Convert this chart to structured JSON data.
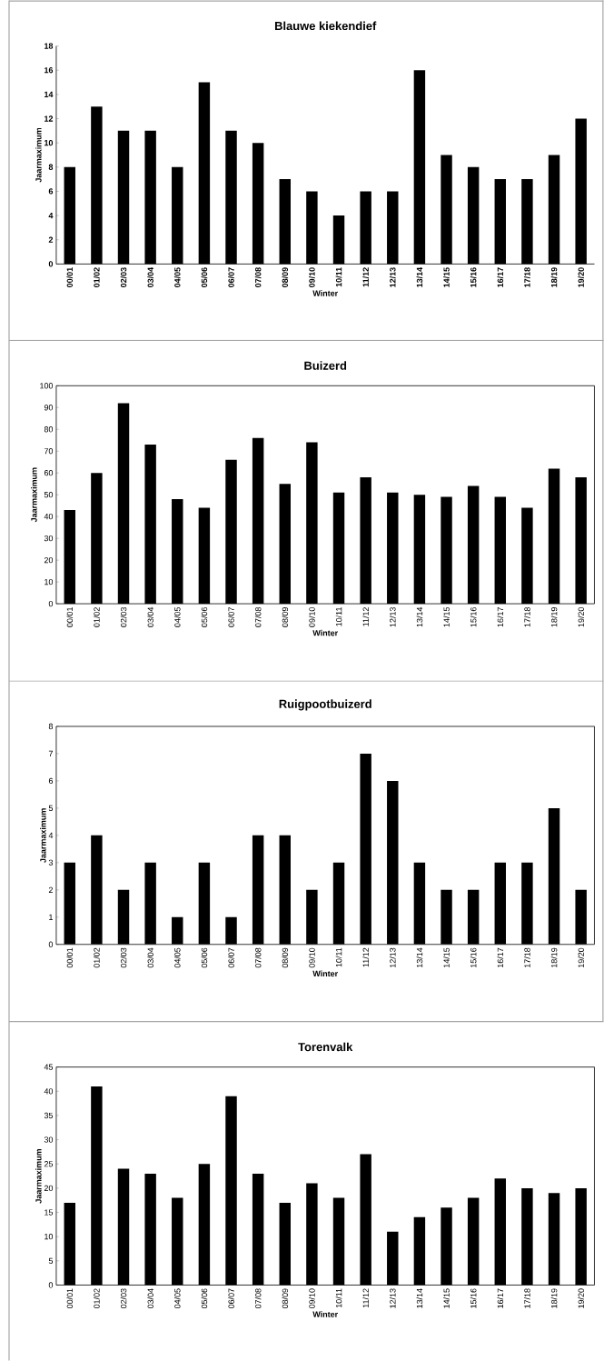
{
  "chart_data": [
    {
      "type": "bar",
      "title": "Blauwe kiekendief",
      "xlabel": "Winter",
      "ylabel": "Jaarmaximum",
      "color": "#000000",
      "categories": [
        "00/01",
        "01/02",
        "02/03",
        "03/04",
        "04/05",
        "05/06",
        "06/07",
        "07/08",
        "08/09",
        "09/10",
        "10/11",
        "11/12",
        "12/13",
        "13/14",
        "14/15",
        "15/16",
        "16/17",
        "17/18",
        "18/19",
        "19/20"
      ],
      "values": [
        8,
        13,
        11,
        11,
        8,
        15,
        11,
        10,
        7,
        6,
        4,
        6,
        6,
        16,
        9,
        8,
        7,
        7,
        9,
        12
      ],
      "ylim": [
        0,
        18
      ],
      "yticks": [
        0,
        2,
        4,
        6,
        8,
        10,
        12,
        14,
        16,
        18
      ]
    },
    {
      "type": "bar",
      "title": "Buizerd",
      "xlabel": "Winter",
      "ylabel": "Jaarmaximum",
      "color": "#000000",
      "categories": [
        "00/01",
        "01/02",
        "02/03",
        "03/04",
        "04/05",
        "05/06",
        "06/07",
        "07/08",
        "08/09",
        "09/10",
        "10/11",
        "11/12",
        "12/13",
        "13/14",
        "14/15",
        "15/16",
        "16/17",
        "17/18",
        "18/19",
        "19/20"
      ],
      "values": [
        43,
        60,
        92,
        73,
        48,
        44,
        66,
        76,
        55,
        74,
        51,
        58,
        51,
        50,
        49,
        54,
        49,
        44,
        62,
        58
      ],
      "ylim": [
        0,
        100
      ],
      "yticks": [
        0,
        10,
        20,
        30,
        40,
        50,
        60,
        70,
        80,
        90,
        100
      ]
    },
    {
      "type": "bar",
      "title": "Ruigpootbuizerd",
      "xlabel": "Winter",
      "ylabel": "Jaarmaximum",
      "color": "#000000",
      "categories": [
        "00/01",
        "01/02",
        "02/03",
        "03/04",
        "04/05",
        "05/06",
        "06/07",
        "07/08",
        "08/09",
        "09/10",
        "10/11",
        "11/12",
        "12/13",
        "13/14",
        "14/15",
        "15/16",
        "16/17",
        "17/18",
        "18/19",
        "19/20"
      ],
      "values": [
        3,
        4,
        2,
        3,
        1,
        3,
        1,
        4,
        4,
        2,
        3,
        7,
        6,
        3,
        2,
        2,
        3,
        3,
        5,
        2
      ],
      "ylim": [
        0,
        8
      ],
      "yticks": [
        0,
        1,
        2,
        3,
        4,
        5,
        6,
        7,
        8
      ]
    },
    {
      "type": "bar",
      "title": "Torenvalk",
      "xlabel": "Winter",
      "ylabel": "Jaarmaximum",
      "color": "#000000",
      "categories": [
        "00/01",
        "01/02",
        "02/03",
        "03/04",
        "04/05",
        "05/06",
        "06/07",
        "07/08",
        "08/09",
        "09/10",
        "10/11",
        "11/12",
        "12/13",
        "13/14",
        "14/15",
        "15/16",
        "16/17",
        "17/18",
        "18/19",
        "19/20"
      ],
      "values": [
        17,
        41,
        24,
        23,
        18,
        25,
        39,
        23,
        17,
        21,
        18,
        27,
        11,
        14,
        16,
        18,
        22,
        20,
        19,
        20
      ],
      "ylim": [
        0,
        45
      ],
      "yticks": [
        0,
        5,
        10,
        15,
        20,
        25,
        30,
        35,
        40,
        45
      ]
    }
  ]
}
